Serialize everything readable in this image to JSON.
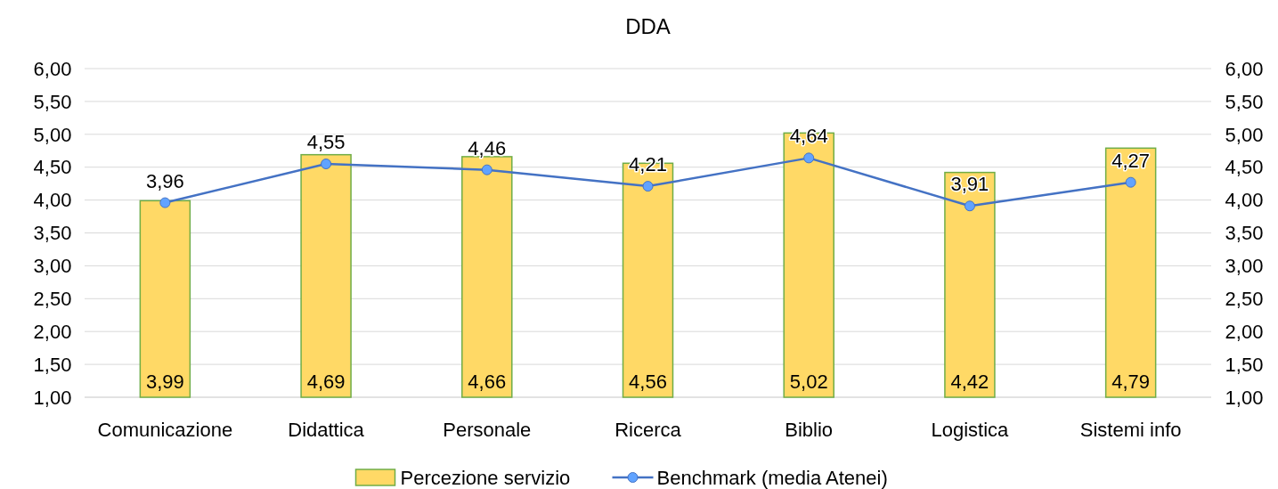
{
  "chart_data": {
    "type": "bar",
    "title": "DDA",
    "categories": [
      "Comunicazione",
      "Didattica",
      "Personale",
      "Ricerca",
      "Biblio",
      "Logistica",
      "Sistemi info"
    ],
    "series": [
      {
        "name": "Percezione servizio",
        "color": "#ffd966",
        "values": [
          3.99,
          4.69,
          4.66,
          4.56,
          5.02,
          4.42,
          4.79
        ],
        "value_labels": [
          "3,99",
          "4,69",
          "4,66",
          "4,56",
          "5,02",
          "4,42",
          "4,79"
        ]
      },
      {
        "name": "Benchmark (media Atenei)",
        "type": "line",
        "color": "#4472c4",
        "marker": "circle",
        "values": [
          3.96,
          4.55,
          4.46,
          4.21,
          4.64,
          3.91,
          4.27
        ],
        "value_labels": [
          "3,96",
          "4,55",
          "4,46",
          "4,21",
          "4,64",
          "3,91",
          "4,27"
        ]
      }
    ],
    "ylim": [
      1,
      6
    ],
    "yticks": [
      {
        "value": 1,
        "label": "1,00"
      },
      {
        "value": 1.5,
        "label": "1,50"
      },
      {
        "value": 2,
        "label": "2,00"
      },
      {
        "value": 2.5,
        "label": "2,50"
      },
      {
        "value": 3,
        "label": "3,00"
      },
      {
        "value": 3.5,
        "label": "3,50"
      },
      {
        "value": 4,
        "label": "4,00"
      },
      {
        "value": 4.5,
        "label": "4,50"
      },
      {
        "value": 5,
        "label": "5,00"
      },
      {
        "value": 5.5,
        "label": "5,50"
      },
      {
        "value": 6,
        "label": "6,00"
      }
    ],
    "y2lim": [
      1,
      6
    ],
    "y2ticks": [
      {
        "value": 1,
        "label": "1,00"
      },
      {
        "value": 1.5,
        "label": "1,50"
      },
      {
        "value": 2,
        "label": "2,00"
      },
      {
        "value": 2.5,
        "label": "2,50"
      },
      {
        "value": 3,
        "label": "3,00"
      },
      {
        "value": 3.5,
        "label": "3,50"
      },
      {
        "value": 4,
        "label": "4,00"
      },
      {
        "value": 4.5,
        "label": "4,50"
      },
      {
        "value": 5,
        "label": "5,00"
      },
      {
        "value": 5.5,
        "label": "5,50"
      },
      {
        "value": 6,
        "label": "6,00"
      }
    ],
    "grid": "y",
    "legend": "bottom"
  }
}
